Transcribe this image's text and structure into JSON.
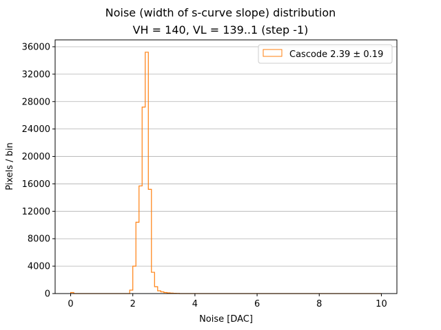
{
  "chart_data": {
    "type": "histogram",
    "title": "Noise (width of s-curve slope) distribution",
    "subtitle": "VH = 140, VL = 139..1 (step -1)",
    "xlabel": "Noise [DAC]",
    "ylabel": "Pixels / bin",
    "xlim": [
      -0.5,
      10.5
    ],
    "ylim": [
      0,
      37000
    ],
    "xticks": [
      0,
      2,
      4,
      6,
      8,
      10
    ],
    "yticks": [
      0,
      4000,
      8000,
      12000,
      16000,
      20000,
      24000,
      28000,
      32000,
      36000
    ],
    "grid": "y",
    "legend_position": "top-right",
    "series": [
      {
        "name": "Cascode",
        "stat_label": "Cascode 2.39 ± 0.19",
        "color": "#ff7f0e",
        "bin_width": 0.1,
        "bin_edges_start": 0.0,
        "bin_edges_end": 10.0,
        "bins": [
          {
            "x0": 0.0,
            "x1": 0.1,
            "count": 150
          },
          {
            "x0": 1.9,
            "x1": 2.0,
            "count": 500
          },
          {
            "x0": 2.0,
            "x1": 2.1,
            "count": 4000
          },
          {
            "x0": 2.1,
            "x1": 2.2,
            "count": 10400
          },
          {
            "x0": 2.2,
            "x1": 2.3,
            "count": 15700
          },
          {
            "x0": 2.3,
            "x1": 2.4,
            "count": 27200
          },
          {
            "x0": 2.4,
            "x1": 2.5,
            "count": 35200
          },
          {
            "x0": 2.5,
            "x1": 2.6,
            "count": 15200
          },
          {
            "x0": 2.6,
            "x1": 2.7,
            "count": 3100
          },
          {
            "x0": 2.7,
            "x1": 2.8,
            "count": 1000
          },
          {
            "x0": 2.8,
            "x1": 2.9,
            "count": 400
          },
          {
            "x0": 2.9,
            "x1": 3.0,
            "count": 250
          },
          {
            "x0": 3.0,
            "x1": 3.1,
            "count": 150
          },
          {
            "x0": 3.1,
            "x1": 3.2,
            "count": 100
          },
          {
            "x0": 3.2,
            "x1": 3.3,
            "count": 60
          },
          {
            "x0": 3.3,
            "x1": 3.4,
            "count": 40
          },
          {
            "x0": 3.4,
            "x1": 3.5,
            "count": 30
          }
        ]
      }
    ]
  }
}
